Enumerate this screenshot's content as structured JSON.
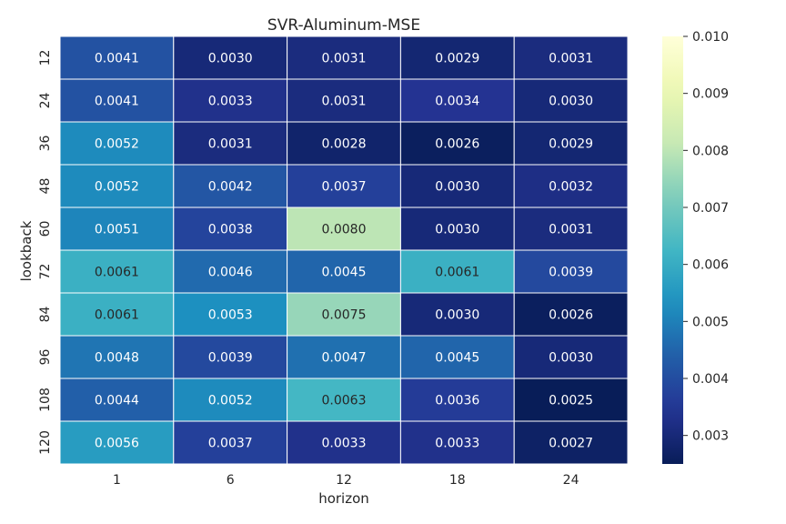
{
  "chart_data": {
    "type": "heatmap",
    "title": "SVR-Aluminum-MSE",
    "xlabel": "horizon",
    "ylabel": "lookback",
    "x_categories": [
      "1",
      "6",
      "12",
      "18",
      "24"
    ],
    "y_categories": [
      "12",
      "24",
      "36",
      "48",
      "60",
      "72",
      "84",
      "96",
      "108",
      "120"
    ],
    "values": [
      [
        0.0041,
        0.003,
        0.0031,
        0.0029,
        0.0031
      ],
      [
        0.0041,
        0.0033,
        0.0031,
        0.0034,
        0.003
      ],
      [
        0.0052,
        0.0031,
        0.0028,
        0.0026,
        0.0029
      ],
      [
        0.0052,
        0.0042,
        0.0037,
        0.003,
        0.0032
      ],
      [
        0.0051,
        0.0038,
        0.008,
        0.003,
        0.0031
      ],
      [
        0.0061,
        0.0046,
        0.0045,
        0.0061,
        0.0039
      ],
      [
        0.0061,
        0.0053,
        0.0075,
        0.003,
        0.0026
      ],
      [
        0.0048,
        0.0039,
        0.0047,
        0.0045,
        0.003
      ],
      [
        0.0044,
        0.0052,
        0.0063,
        0.0036,
        0.0025
      ],
      [
        0.0056,
        0.0037,
        0.0033,
        0.0033,
        0.0027
      ]
    ],
    "cell_labels": [
      [
        "0.0041",
        "0.0030",
        "0.0031",
        "0.0029",
        "0.0031"
      ],
      [
        "0.0041",
        "0.0033",
        "0.0031",
        "0.0034",
        "0.0030"
      ],
      [
        "0.0052",
        "0.0031",
        "0.0028",
        "0.0026",
        "0.0029"
      ],
      [
        "0.0052",
        "0.0042",
        "0.0037",
        "0.0030",
        "0.0032"
      ],
      [
        "0.0051",
        "0.0038",
        "0.0080",
        "0.0030",
        "0.0031"
      ],
      [
        "0.0061",
        "0.0046",
        "0.0045",
        "0.0061",
        "0.0039"
      ],
      [
        "0.0061",
        "0.0053",
        "0.0075",
        "0.0030",
        "0.0026"
      ],
      [
        "0.0048",
        "0.0039",
        "0.0047",
        "0.0045",
        "0.0030"
      ],
      [
        "0.0044",
        "0.0052",
        "0.0063",
        "0.0036",
        "0.0025"
      ],
      [
        "0.0056",
        "0.0037",
        "0.0033",
        "0.0033",
        "0.0027"
      ]
    ],
    "colormap": "YlGnBu",
    "vmin": 0.0025,
    "vmax": 0.01,
    "colorbar_ticks": [
      0.003,
      0.004,
      0.005,
      0.006,
      0.007,
      0.008,
      0.009,
      0.01
    ],
    "colorbar_tick_labels": [
      "0.003",
      "0.004",
      "0.005",
      "0.006",
      "0.007",
      "0.008",
      "0.009",
      "0.010"
    ],
    "grid": false,
    "cell_border_color": "#ffffff"
  }
}
